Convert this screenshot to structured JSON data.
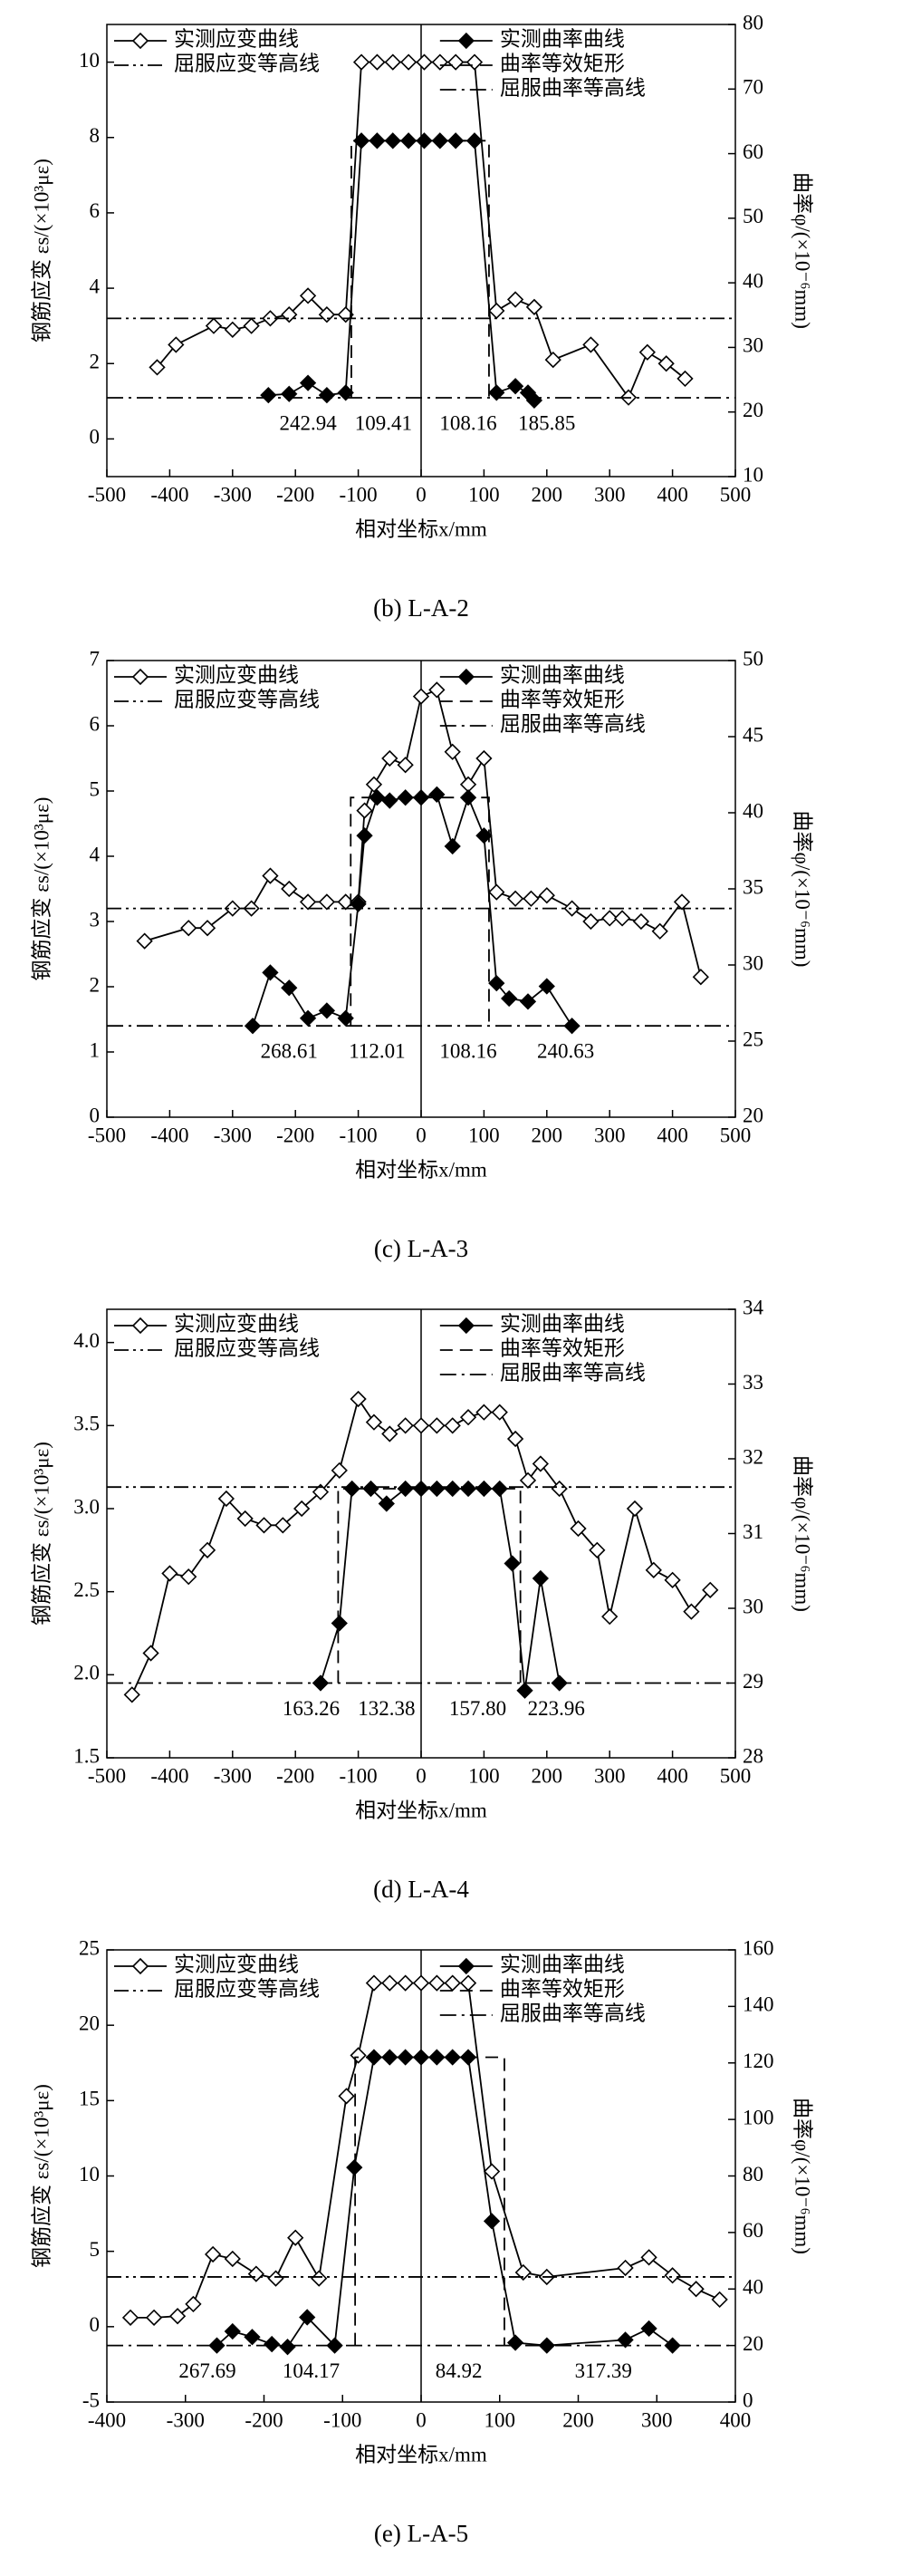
{
  "chart_data": [
    {
      "type": "line",
      "caption": "(b) L-A-2",
      "xlabel": "相对坐标x/mm",
      "ylabel": "钢筋应变 εs/(×10³με)",
      "y2label": "曲率φ/(×10⁻⁶mm)",
      "xlim": [
        -500,
        500
      ],
      "xticks": [
        -500,
        -400,
        -300,
        -200,
        -100,
        0,
        100,
        200,
        300,
        400,
        500
      ],
      "ylim": [
        -1,
        11
      ],
      "yticks": [
        0,
        2,
        4,
        6,
        8,
        10
      ],
      "y2lim": [
        10,
        80
      ],
      "y2ticks": [
        10,
        20,
        30,
        40,
        50,
        60,
        70,
        80
      ],
      "series": [
        {
          "name": "实测应变曲线",
          "marker": "diamond-open",
          "linestyle": "solid",
          "axis": "y",
          "x": [
            -420,
            -390,
            -330,
            -300,
            -270,
            -240,
            -210,
            -180,
            -150,
            -120,
            -95,
            -70,
            -45,
            -20,
            5,
            30,
            55,
            85,
            120,
            150,
            180,
            210,
            270,
            330,
            360,
            390,
            420
          ],
          "values": [
            1.9,
            2.5,
            3.0,
            2.9,
            3.0,
            3.2,
            3.3,
            3.8,
            3.3,
            3.3,
            10,
            10,
            10,
            10,
            10,
            10,
            10,
            10,
            3.4,
            3.7,
            3.5,
            2.1,
            2.5,
            1.1,
            2.3,
            2.0,
            1.6
          ]
        },
        {
          "name": "屈服应变等高线",
          "marker": "none",
          "linestyle": "dash-dot-dot",
          "axis": "y",
          "x": [
            -500,
            500
          ],
          "values": [
            3.2,
            3.2
          ]
        },
        {
          "name": "实测曲率曲线",
          "marker": "diamond-filled",
          "linestyle": "solid",
          "axis": "y2",
          "x": [
            -243,
            -210,
            -180,
            -150,
            -120,
            -95,
            -70,
            -45,
            -20,
            5,
            30,
            55,
            85,
            120,
            150,
            170,
            180
          ],
          "values": [
            22.6,
            22.8,
            24.5,
            22.6,
            23,
            62,
            62,
            62,
            62,
            62,
            62,
            62,
            62,
            23,
            24,
            23,
            21.8
          ]
        },
        {
          "name": "曲率等效矩形",
          "marker": "none",
          "linestyle": "dashed",
          "axis": "y2",
          "x": [
            -111,
            -111,
            108,
            108
          ],
          "values": [
            22.2,
            62,
            62,
            22.2
          ]
        },
        {
          "name": "屈服曲率等高线",
          "marker": "none",
          "linestyle": "dash-dot",
          "axis": "y2",
          "x": [
            -500,
            500
          ],
          "values": [
            22.2,
            22.2
          ]
        }
      ],
      "annotations": [
        "242.94",
        "109.41",
        "108.16",
        "185.85"
      ]
    },
    {
      "type": "line",
      "caption": "(c) L-A-3",
      "xlabel": "相对坐标x/mm",
      "ylabel": "钢筋应变 εs/(×10³με)",
      "y2label": "曲率φ/(×10⁻⁶mm)",
      "xlim": [
        -500,
        500
      ],
      "xticks": [
        -500,
        -400,
        -300,
        -200,
        -100,
        0,
        100,
        200,
        300,
        400,
        500
      ],
      "ylim": [
        0,
        7
      ],
      "yticks": [
        0,
        1,
        2,
        3,
        4,
        5,
        6,
        7
      ],
      "y2lim": [
        20,
        50
      ],
      "y2ticks": [
        20,
        25,
        30,
        35,
        40,
        45,
        50
      ],
      "series": [
        {
          "name": "实测应变曲线",
          "marker": "diamond-open",
          "linestyle": "solid",
          "axis": "y",
          "x": [
            -440,
            -370,
            -340,
            -300,
            -270,
            -240,
            -210,
            -180,
            -150,
            -120,
            -100,
            -90,
            -75,
            -50,
            -25,
            0,
            25,
            50,
            75,
            100,
            120,
            150,
            175,
            200,
            240,
            270,
            300,
            320,
            350,
            380,
            415,
            445
          ],
          "values": [
            2.7,
            2.9,
            2.9,
            3.2,
            3.2,
            3.7,
            3.5,
            3.3,
            3.3,
            3.3,
            3.3,
            4.7,
            5.1,
            5.5,
            5.4,
            6.45,
            6.55,
            5.6,
            5.1,
            5.5,
            3.45,
            3.35,
            3.35,
            3.4,
            3.2,
            3.0,
            3.05,
            3.05,
            3.0,
            2.85,
            3.3,
            2.15
          ]
        },
        {
          "name": "屈服应变等高线",
          "marker": "none",
          "linestyle": "dash-dot-dot",
          "axis": "y",
          "x": [
            -500,
            500
          ],
          "values": [
            3.2,
            3.2
          ]
        },
        {
          "name": "实测曲率曲线",
          "marker": "diamond-filled",
          "linestyle": "solid",
          "axis": "y2",
          "x": [
            -268,
            -240,
            -210,
            -180,
            -150,
            -120,
            -100,
            -90,
            -70,
            -50,
            -25,
            0,
            25,
            50,
            75,
            100,
            120,
            140,
            170,
            200,
            240
          ],
          "values": [
            26,
            29.5,
            28.5,
            26.5,
            27,
            26.5,
            34,
            38.5,
            41,
            40.8,
            41,
            41,
            41.2,
            37.8,
            41,
            38.5,
            28.8,
            27.8,
            27.6,
            28.6,
            26
          ]
        },
        {
          "name": "曲率等效矩形",
          "marker": "none",
          "linestyle": "dashed",
          "axis": "y2",
          "x": [
            -112,
            -112,
            108,
            108
          ],
          "values": [
            26,
            41,
            41,
            26
          ]
        },
        {
          "name": "屈服曲率等高线",
          "marker": "none",
          "linestyle": "dash-dot",
          "axis": "y2",
          "x": [
            -500,
            500
          ],
          "values": [
            26,
            26
          ]
        }
      ],
      "annotations": [
        "268.61",
        "112.01",
        "108.16",
        "240.63"
      ]
    },
    {
      "type": "line",
      "caption": "(d) L-A-4",
      "xlabel": "相对坐标x/mm",
      "ylabel": "钢筋应变 εs/(×10³με)",
      "y2label": "曲率φ/(×10⁻⁶mm)",
      "xlim": [
        -500,
        500
      ],
      "xticks": [
        -500,
        -400,
        -300,
        -200,
        -100,
        0,
        100,
        200,
        300,
        400,
        500
      ],
      "ylim": [
        1.5,
        4.2
      ],
      "yticks": [
        1.5,
        {
          "value": 2,
          "label": "2.0"
        },
        2.5,
        {
          "value": 3,
          "label": "3.0"
        },
        3.5,
        {
          "value": 4,
          "label": "4.0"
        }
      ],
      "y2lim": [
        28,
        34
      ],
      "y2ticks": [
        28,
        29,
        30,
        31,
        32,
        33,
        34
      ],
      "series": [
        {
          "name": "实测应变曲线",
          "marker": "diamond-open",
          "linestyle": "solid",
          "axis": "y",
          "x": [
            -460,
            -430,
            -400,
            -370,
            -340,
            -310,
            -280,
            -250,
            -220,
            -190,
            -160,
            -130,
            -100,
            -75,
            -50,
            -25,
            0,
            25,
            50,
            75,
            100,
            125,
            150,
            170,
            190,
            220,
            250,
            280,
            300,
            340,
            370,
            400,
            430,
            460
          ],
          "values": [
            1.88,
            2.13,
            2.61,
            2.59,
            2.75,
            3.06,
            2.94,
            2.9,
            2.9,
            3.0,
            3.1,
            3.23,
            3.66,
            3.52,
            3.45,
            3.5,
            3.5,
            3.5,
            3.5,
            3.55,
            3.58,
            3.58,
            3.42,
            3.17,
            3.27,
            3.12,
            2.88,
            2.75,
            2.35,
            3.0,
            2.63,
            2.57,
            2.38,
            2.51
          ]
        },
        {
          "name": "屈服应变等高线",
          "marker": "none",
          "linestyle": "dash-dot-dot",
          "axis": "y",
          "x": [
            -500,
            500
          ],
          "values": [
            3.13,
            3.13
          ]
        },
        {
          "name": "实测曲率曲线",
          "marker": "diamond-filled",
          "linestyle": "solid",
          "axis": "y2",
          "x": [
            -160,
            -130,
            -110,
            -80,
            -55,
            -25,
            0,
            25,
            50,
            75,
            100,
            125,
            145,
            165,
            190,
            220
          ],
          "values": [
            29,
            29.8,
            31.6,
            31.6,
            31.4,
            31.6,
            31.6,
            31.6,
            31.6,
            31.6,
            31.6,
            31.6,
            30.6,
            28.9,
            30.4,
            29
          ]
        },
        {
          "name": "曲率等效矩形",
          "marker": "none",
          "linestyle": "dashed",
          "axis": "y2",
          "x": [
            -132,
            -132,
            158,
            158
          ],
          "values": [
            29,
            31.6,
            31.6,
            29
          ]
        },
        {
          "name": "屈服曲率等高线",
          "marker": "none",
          "linestyle": "dash-dot",
          "axis": "y2",
          "x": [
            -500,
            500
          ],
          "values": [
            29,
            29
          ]
        }
      ],
      "annotations": [
        "163.26",
        "132.38",
        "157.80",
        "223.96"
      ]
    },
    {
      "type": "line",
      "caption": "(e) L-A-5",
      "xlabel": "相对坐标x/mm",
      "ylabel": "钢筋应变 εs/(×10³με)",
      "y2label": "曲率φ/(×10⁻⁶mm)",
      "xlim": [
        -400,
        400
      ],
      "xticks": [
        -400,
        -300,
        -200,
        -100,
        0,
        100,
        200,
        300,
        400
      ],
      "ylim": [
        -5,
        25
      ],
      "yticks": [
        -5,
        0,
        5,
        10,
        15,
        20,
        25
      ],
      "y2lim": [
        0,
        160
      ],
      "y2ticks": [
        0,
        20,
        40,
        60,
        80,
        100,
        120,
        140,
        160
      ],
      "series": [
        {
          "name": "实测应变曲线",
          "marker": "diamond-open",
          "linestyle": "solid",
          "axis": "y",
          "x": [
            -370,
            -340,
            -310,
            -290,
            -265,
            -240,
            -210,
            -185,
            -160,
            -130,
            -95,
            -80,
            -60,
            -40,
            -20,
            0,
            20,
            40,
            60,
            90,
            130,
            160,
            260,
            290,
            320,
            350,
            380
          ],
          "values": [
            0.6,
            0.6,
            0.7,
            1.5,
            4.8,
            4.5,
            3.5,
            3.2,
            5.9,
            3.2,
            15.3,
            18,
            22.8,
            22.8,
            22.8,
            22.8,
            22.8,
            22.8,
            22.8,
            10.3,
            3.6,
            3.3,
            3.9,
            4.6,
            3.4,
            2.5,
            1.8
          ]
        },
        {
          "name": "屈服应变等高线",
          "marker": "none",
          "linestyle": "dash-dot-dot",
          "axis": "y",
          "x": [
            -400,
            400
          ],
          "values": [
            3.3,
            3.3
          ]
        },
        {
          "name": "实测曲率曲线",
          "marker": "diamond-filled",
          "linestyle": "solid",
          "axis": "y2",
          "x": [
            -260,
            -240,
            -215,
            -190,
            -170,
            -145,
            -110,
            -85,
            -60,
            -40,
            -20,
            0,
            20,
            40,
            60,
            90,
            120,
            160,
            260,
            290,
            320
          ],
          "values": [
            20,
            25,
            23,
            20.5,
            19.5,
            30,
            20,
            83,
            122,
            122,
            122,
            122,
            122,
            122,
            122,
            64,
            21,
            20,
            22,
            26,
            20
          ]
        },
        {
          "name": "曲率等效矩形",
          "marker": "none",
          "linestyle": "dashed",
          "axis": "y2",
          "x": [
            -84,
            -84,
            106,
            106
          ],
          "values": [
            20,
            122,
            122,
            20
          ]
        },
        {
          "name": "屈服曲率等高线",
          "marker": "none",
          "linestyle": "dash-dot",
          "axis": "y2",
          "x": [
            -400,
            400
          ],
          "values": [
            20,
            20
          ]
        }
      ],
      "annotations": [
        "267.69",
        "104.17",
        "84.92",
        "317.39"
      ]
    }
  ]
}
